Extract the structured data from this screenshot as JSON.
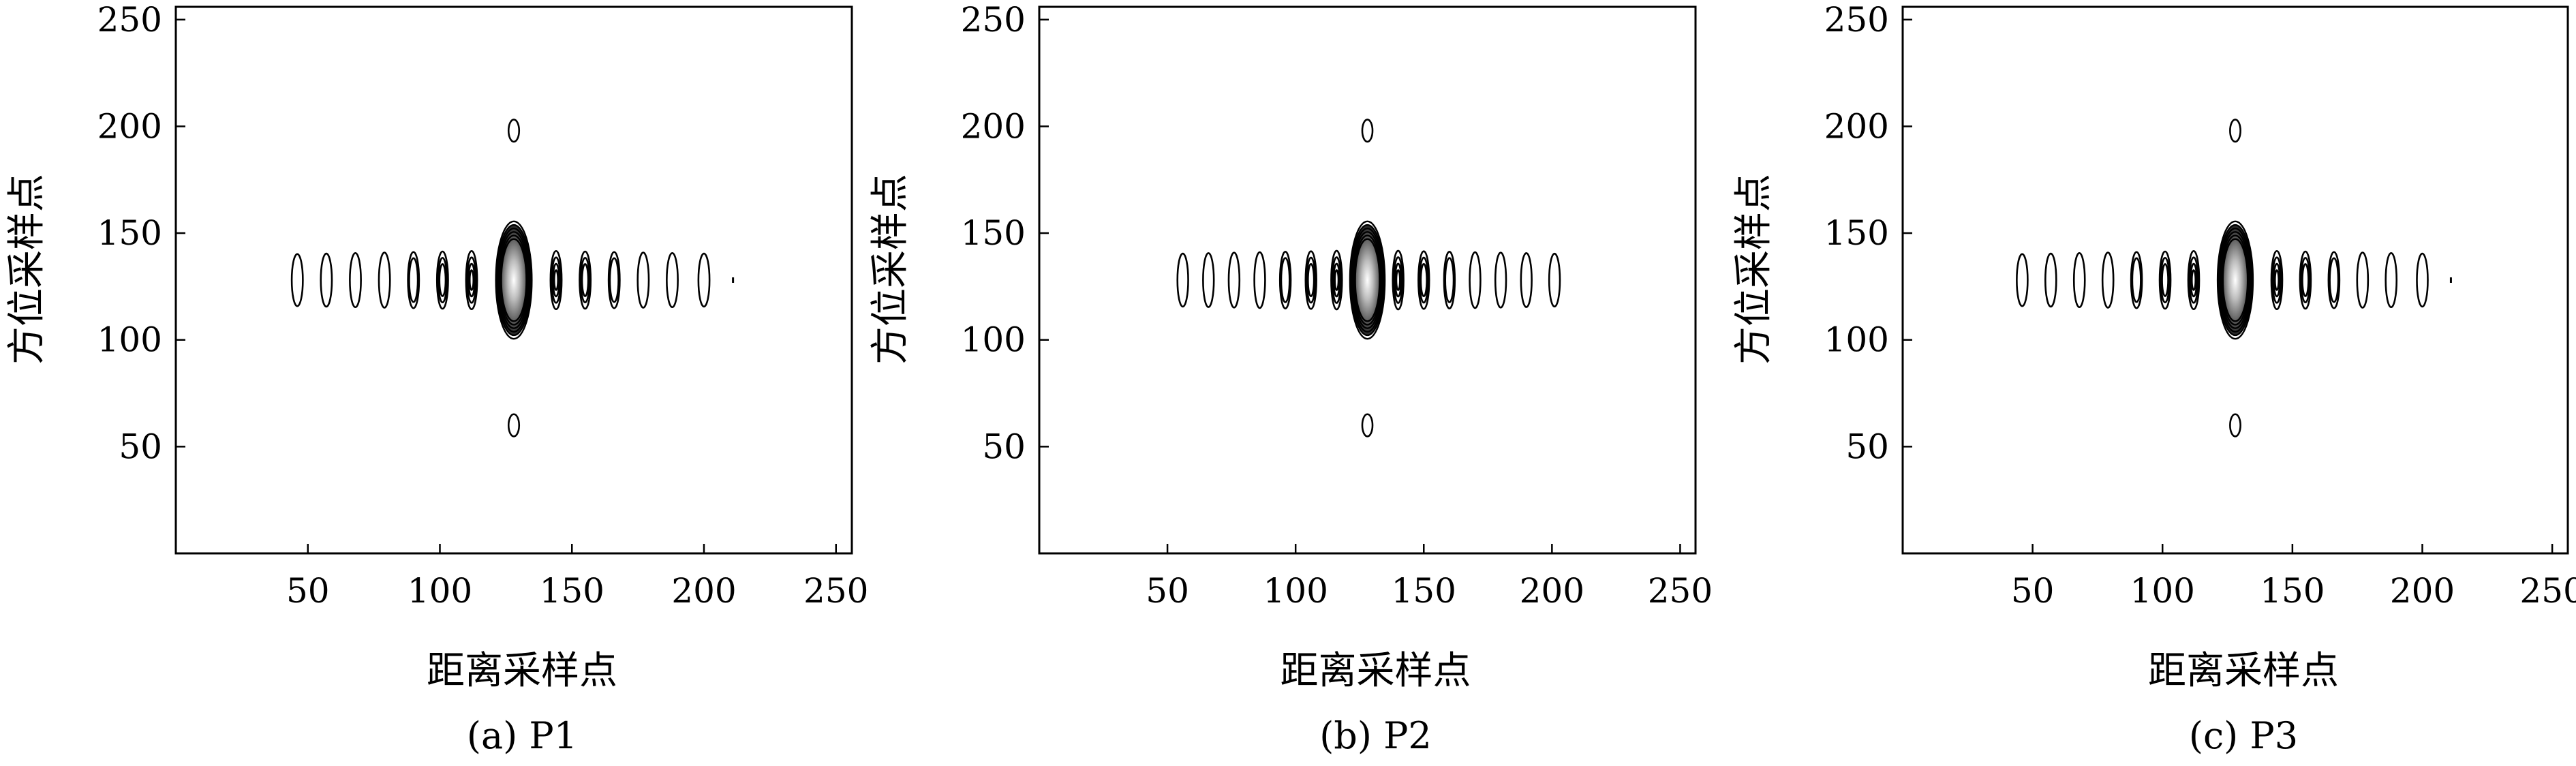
{
  "chart_data": [
    {
      "type": "contour",
      "caption": "(a) P1",
      "xlabel": "距离采样点",
      "ylabel": "方位采样点",
      "xlim": [
        0,
        256
      ],
      "ylim": [
        0,
        256
      ],
      "xticks": [
        50,
        100,
        150,
        200,
        250
      ],
      "yticks": [
        50,
        100,
        150,
        200,
        250
      ],
      "peak": {
        "x": 128,
        "y": 128
      },
      "range_sidelobes": [
        {
          "x": 46,
          "levels": 1
        },
        {
          "x": 57,
          "levels": 1
        },
        {
          "x": 68,
          "levels": 1
        },
        {
          "x": 79,
          "levels": 1
        },
        {
          "x": 90,
          "levels": 2
        },
        {
          "x": 101,
          "levels": 3
        },
        {
          "x": 112,
          "levels": 4
        },
        {
          "x": 144,
          "levels": 4
        },
        {
          "x": 155,
          "levels": 3
        },
        {
          "x": 166,
          "levels": 2
        },
        {
          "x": 177,
          "levels": 1
        },
        {
          "x": 188,
          "levels": 1
        },
        {
          "x": 200,
          "levels": 1
        },
        {
          "x": 211,
          "levels": 0
        }
      ],
      "azimuth_sidelobes": [
        {
          "y": 198
        },
        {
          "y": 60
        }
      ]
    },
    {
      "type": "contour",
      "caption": "(b) P2",
      "xlabel": "距离采样点",
      "ylabel": "方位采样点",
      "xlim": [
        0,
        256
      ],
      "ylim": [
        0,
        256
      ],
      "xticks": [
        50,
        100,
        150,
        200,
        250
      ],
      "yticks": [
        50,
        100,
        150,
        200,
        250
      ],
      "peak": {
        "x": 128,
        "y": 128
      },
      "range_sidelobes": [
        {
          "x": 56,
          "levels": 1
        },
        {
          "x": 66,
          "levels": 1
        },
        {
          "x": 76,
          "levels": 1
        },
        {
          "x": 86,
          "levels": 1
        },
        {
          "x": 96,
          "levels": 2
        },
        {
          "x": 106,
          "levels": 3
        },
        {
          "x": 116,
          "levels": 4
        },
        {
          "x": 140,
          "levels": 4
        },
        {
          "x": 150,
          "levels": 3
        },
        {
          "x": 160,
          "levels": 2
        },
        {
          "x": 170,
          "levels": 1
        },
        {
          "x": 180,
          "levels": 1
        },
        {
          "x": 190,
          "levels": 1
        },
        {
          "x": 201,
          "levels": 1
        }
      ],
      "azimuth_sidelobes": [
        {
          "y": 198
        },
        {
          "y": 60
        }
      ]
    },
    {
      "type": "contour",
      "caption": "(c) P3",
      "xlabel": "距离采样点",
      "ylabel": "方位采样点",
      "xlim": [
        0,
        256
      ],
      "ylim": [
        0,
        256
      ],
      "xticks": [
        50,
        100,
        150,
        200,
        250
      ],
      "yticks": [
        50,
        100,
        150,
        200,
        250
      ],
      "peak": {
        "x": 128,
        "y": 128
      },
      "range_sidelobes": [
        {
          "x": 46,
          "levels": 1
        },
        {
          "x": 57,
          "levels": 1
        },
        {
          "x": 68,
          "levels": 1
        },
        {
          "x": 79,
          "levels": 1
        },
        {
          "x": 90,
          "levels": 2
        },
        {
          "x": 101,
          "levels": 3
        },
        {
          "x": 112,
          "levels": 4
        },
        {
          "x": 144,
          "levels": 4
        },
        {
          "x": 155,
          "levels": 3
        },
        {
          "x": 166,
          "levels": 2
        },
        {
          "x": 177,
          "levels": 1
        },
        {
          "x": 188,
          "levels": 1
        },
        {
          "x": 200,
          "levels": 1
        },
        {
          "x": 211,
          "levels": 0
        }
      ],
      "azimuth_sidelobes": [
        {
          "y": 198
        },
        {
          "y": 60
        }
      ]
    }
  ]
}
